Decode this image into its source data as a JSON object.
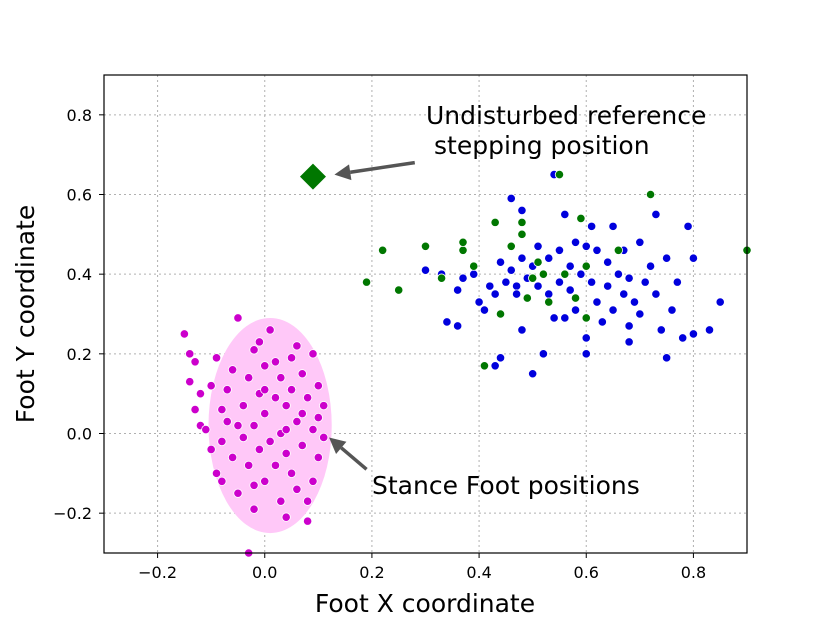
{
  "chart_data": {
    "type": "scatter",
    "title": "",
    "xlabel": "Foot X coordinate",
    "ylabel": "Foot Y coordinate",
    "xlim": [
      -0.3,
      0.9
    ],
    "ylim": [
      -0.3,
      0.9
    ],
    "xticks": [
      -0.2,
      0.0,
      0.2,
      0.4,
      0.6,
      0.8
    ],
    "yticks": [
      -0.2,
      0.0,
      0.2,
      0.4,
      0.6,
      0.8
    ],
    "xtick_labels": [
      "−0.2",
      "0.0",
      "0.2",
      "0.4",
      "0.6",
      "0.8"
    ],
    "ytick_labels": [
      "−0.2",
      "0.0",
      "0.2",
      "0.4",
      "0.6",
      "0.8"
    ],
    "grid": true,
    "series": [
      {
        "color": "#0000dd",
        "points": [
          [
            0.3,
            0.41
          ],
          [
            0.33,
            0.4
          ],
          [
            0.34,
            0.28
          ],
          [
            0.36,
            0.27
          ],
          [
            0.36,
            0.36
          ],
          [
            0.37,
            0.39
          ],
          [
            0.39,
            0.4
          ],
          [
            0.4,
            0.33
          ],
          [
            0.41,
            0.31
          ],
          [
            0.42,
            0.37
          ],
          [
            0.43,
            0.35
          ],
          [
            0.43,
            0.17
          ],
          [
            0.44,
            0.43
          ],
          [
            0.45,
            0.38
          ],
          [
            0.46,
            0.41
          ],
          [
            0.46,
            0.59
          ],
          [
            0.47,
            0.37
          ],
          [
            0.47,
            0.35
          ],
          [
            0.48,
            0.44
          ],
          [
            0.48,
            0.56
          ],
          [
            0.49,
            0.39
          ],
          [
            0.5,
            0.42
          ],
          [
            0.5,
            0.15
          ],
          [
            0.51,
            0.47
          ],
          [
            0.51,
            0.37
          ],
          [
            0.52,
            0.2
          ],
          [
            0.52,
            0.4
          ],
          [
            0.53,
            0.35
          ],
          [
            0.53,
            0.44
          ],
          [
            0.54,
            0.29
          ],
          [
            0.54,
            0.65
          ],
          [
            0.55,
            0.46
          ],
          [
            0.55,
            0.38
          ],
          [
            0.56,
            0.29
          ],
          [
            0.56,
            0.55
          ],
          [
            0.57,
            0.36
          ],
          [
            0.57,
            0.42
          ],
          [
            0.58,
            0.48
          ],
          [
            0.58,
            0.31
          ],
          [
            0.59,
            0.4
          ],
          [
            0.6,
            0.47
          ],
          [
            0.6,
            0.24
          ],
          [
            0.61,
            0.38
          ],
          [
            0.61,
            0.52
          ],
          [
            0.62,
            0.33
          ],
          [
            0.62,
            0.46
          ],
          [
            0.63,
            0.28
          ],
          [
            0.64,
            0.43
          ],
          [
            0.64,
            0.37
          ],
          [
            0.65,
            0.31
          ],
          [
            0.65,
            0.52
          ],
          [
            0.66,
            0.4
          ],
          [
            0.67,
            0.35
          ],
          [
            0.67,
            0.46
          ],
          [
            0.68,
            0.27
          ],
          [
            0.68,
            0.39
          ],
          [
            0.69,
            0.33
          ],
          [
            0.7,
            0.48
          ],
          [
            0.7,
            0.3
          ],
          [
            0.71,
            0.38
          ],
          [
            0.72,
            0.42
          ],
          [
            0.73,
            0.55
          ],
          [
            0.73,
            0.35
          ],
          [
            0.74,
            0.26
          ],
          [
            0.75,
            0.44
          ],
          [
            0.75,
            0.19
          ],
          [
            0.76,
            0.31
          ],
          [
            0.77,
            0.38
          ],
          [
            0.78,
            0.24
          ],
          [
            0.79,
            0.52
          ],
          [
            0.8,
            0.25
          ],
          [
            0.8,
            0.44
          ],
          [
            0.83,
            0.26
          ],
          [
            0.85,
            0.33
          ],
          [
            0.6,
            0.2
          ],
          [
            0.68,
            0.23
          ],
          [
            0.44,
            0.19
          ],
          [
            0.48,
            0.26
          ]
        ]
      },
      {
        "color": "#007700",
        "points": [
          [
            0.19,
            0.38
          ],
          [
            0.22,
            0.46
          ],
          [
            0.25,
            0.36
          ],
          [
            0.3,
            0.47
          ],
          [
            0.33,
            0.39
          ],
          [
            0.37,
            0.46
          ],
          [
            0.37,
            0.48
          ],
          [
            0.39,
            0.42
          ],
          [
            0.41,
            0.17
          ],
          [
            0.43,
            0.53
          ],
          [
            0.44,
            0.3
          ],
          [
            0.46,
            0.47
          ],
          [
            0.48,
            0.5
          ],
          [
            0.48,
            0.53
          ],
          [
            0.49,
            0.34
          ],
          [
            0.5,
            0.39
          ],
          [
            0.51,
            0.43
          ],
          [
            0.52,
            0.4
          ],
          [
            0.53,
            0.33
          ],
          [
            0.55,
            0.65
          ],
          [
            0.56,
            0.4
          ],
          [
            0.58,
            0.34
          ],
          [
            0.59,
            0.54
          ],
          [
            0.6,
            0.42
          ],
          [
            0.6,
            0.29
          ],
          [
            0.66,
            0.46
          ],
          [
            0.72,
            0.6
          ],
          [
            0.9,
            0.46
          ]
        ]
      },
      {
        "color": "#cc00cc",
        "points": [
          [
            -0.15,
            0.25
          ],
          [
            -0.14,
            0.2
          ],
          [
            -0.14,
            0.13
          ],
          [
            -0.13,
            0.06
          ],
          [
            -0.12,
            0.1
          ],
          [
            -0.12,
            0.02
          ],
          [
            -0.11,
            0.01
          ],
          [
            -0.1,
            -0.04
          ],
          [
            -0.1,
            0.12
          ],
          [
            -0.09,
            0.19
          ],
          [
            -0.09,
            -0.1
          ],
          [
            -0.08,
            0.06
          ],
          [
            -0.08,
            -0.02
          ],
          [
            -0.07,
            0.11
          ],
          [
            -0.07,
            0.03
          ],
          [
            -0.06,
            0.16
          ],
          [
            -0.06,
            -0.06
          ],
          [
            -0.05,
            0.29
          ],
          [
            -0.05,
            -0.15
          ],
          [
            -0.04,
            0.07
          ],
          [
            -0.04,
            -0.01
          ],
          [
            -0.03,
            0.14
          ],
          [
            -0.03,
            -0.08
          ],
          [
            -0.02,
            0.21
          ],
          [
            -0.02,
            0.02
          ],
          [
            -0.02,
            -0.19
          ],
          [
            -0.01,
            0.1
          ],
          [
            -0.01,
            -0.04
          ],
          [
            0.0,
            0.17
          ],
          [
            0.0,
            0.05
          ],
          [
            0.0,
            -0.12
          ],
          [
            0.01,
            0.26
          ],
          [
            0.01,
            -0.02
          ],
          [
            0.02,
            0.09
          ],
          [
            0.02,
            -0.08
          ],
          [
            0.03,
            0.14
          ],
          [
            0.03,
            0.0
          ],
          [
            0.03,
            -0.17
          ],
          [
            0.04,
            0.07
          ],
          [
            0.04,
            -0.05
          ],
          [
            0.05,
            0.19
          ],
          [
            0.05,
            0.11
          ],
          [
            0.05,
            -0.1
          ],
          [
            0.06,
            0.03
          ],
          [
            0.06,
            -0.14
          ],
          [
            0.07,
            0.15
          ],
          [
            0.07,
            0.05
          ],
          [
            0.07,
            -0.03
          ],
          [
            0.08,
            0.09
          ],
          [
            0.08,
            -0.22
          ],
          [
            0.09,
            0.2
          ],
          [
            0.09,
            0.01
          ],
          [
            0.09,
            -0.12
          ],
          [
            0.1,
            0.12
          ],
          [
            0.1,
            -0.06
          ],
          [
            0.1,
            0.04
          ],
          [
            0.11,
            0.07
          ],
          [
            0.11,
            -0.01
          ],
          [
            -0.03,
            -0.3
          ],
          [
            -0.13,
            0.18
          ],
          [
            -0.01,
            0.23
          ],
          [
            0.04,
            -0.21
          ],
          [
            0.06,
            0.22
          ],
          [
            -0.08,
            -0.12
          ],
          [
            0.02,
            0.18
          ],
          [
            0.08,
            -0.17
          ],
          [
            -0.05,
            0.02
          ],
          [
            0.0,
            0.11
          ],
          [
            0.04,
            0.01
          ],
          [
            -0.02,
            -0.13
          ]
        ]
      }
    ],
    "ellipse": {
      "cx": 0.01,
      "cy": 0.02,
      "rx": 0.115,
      "ry": 0.27,
      "color": "#ffc8f8"
    },
    "reference_point": {
      "x": 0.09,
      "y": 0.645,
      "color": "#007700"
    },
    "annotations": [
      {
        "lines": [
          "Undisturbed reference",
          "stepping position"
        ],
        "arrow_from": [
          0.28,
          0.68
        ],
        "arrow_to": [
          0.13,
          0.65
        ]
      },
      {
        "lines": [
          "Stance Foot positions"
        ],
        "arrow_from": [
          0.19,
          -0.09
        ],
        "arrow_to": [
          0.12,
          -0.01
        ]
      }
    ]
  }
}
